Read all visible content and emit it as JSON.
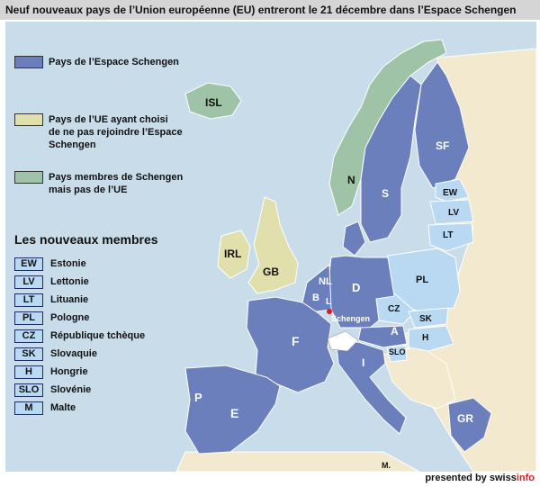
{
  "header": {
    "title": "Neuf nouveaux pays de l’Union européenne (EU) entreront le 21 décembre dans l’Espace Schengen"
  },
  "legend": {
    "schengen": "Pays de l’Espace Schengen",
    "ue_line1": "Pays de l’UE ayant choisi",
    "ue_line2": "de ne pas rejoindre l’Espace",
    "ue_line3": "Schengen",
    "member_line1": "Pays membres de Schengen",
    "member_line2": "mais pas de l’UE"
  },
  "nouveaux": {
    "title": "Les nouveaux membres",
    "items": [
      {
        "code": "EW",
        "name": "Estonie"
      },
      {
        "code": "LV",
        "name": "Lettonie"
      },
      {
        "code": "LT",
        "name": "Lituanie"
      },
      {
        "code": "PL",
        "name": "Pologne"
      },
      {
        "code": "CZ",
        "name": "République tchèque"
      },
      {
        "code": "SK",
        "name": "Slovaquie"
      },
      {
        "code": "H",
        "name": "Hongrie"
      },
      {
        "code": "SLO",
        "name": "Slovénie"
      },
      {
        "code": "M",
        "name": "Malte"
      }
    ]
  },
  "map_labels": {
    "isl": "ISL",
    "n": "N",
    "s": "S",
    "sf": "SF",
    "ew": "EW",
    "lv": "LV",
    "lt": "LT",
    "irl": "IRL",
    "gb": "GB",
    "nl": "NL",
    "b": "B",
    "l": "L",
    "d": "D",
    "pl": "PL",
    "cz": "CZ",
    "sk": "SK",
    "h": "H",
    "a": "A",
    "slo": "SLO",
    "f": "F",
    "i": "I",
    "p": "P",
    "e": "E",
    "gr": "GR",
    "m": "M.",
    "schengen": "Schengen"
  },
  "footer": {
    "prefix": "presented by swiss",
    "accent": "info"
  },
  "colors": {
    "schengen": "#6b7fbd",
    "ue_not_schengen": "#e1dfac",
    "schengen_not_ue": "#9fc3a6",
    "new_member": "#b9d9f3",
    "sea": "#c9dcea",
    "other_land": "#f2e9cf",
    "schengen_dot": "#e01818"
  }
}
